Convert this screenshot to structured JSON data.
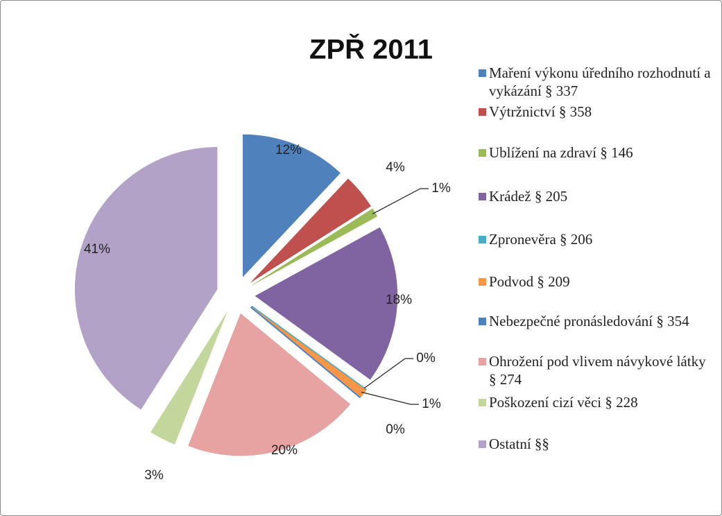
{
  "chart_data": {
    "type": "pie",
    "title": "ZPŘ 2011",
    "categories": [
      "Maření výkonu úředního rozhodnutí a vykázání § 337",
      "Výtržnictví § 358",
      "Ublížení na zdraví § 146",
      "Krádež § 205",
      "Zpronevěra § 206",
      "Podvod § 209",
      "Nebezpečné pronásledování § 354",
      "Ohrožení pod vlivem návykové látky § 274",
      "Poškození cizí věci § 228",
      "Ostatní §§"
    ],
    "values": [
      12,
      4,
      1,
      18,
      0,
      1,
      0,
      20,
      3,
      41
    ],
    "value_labels": [
      "12%",
      "4%",
      "1%",
      "18%",
      "0%",
      "1%",
      "0%",
      "20%",
      "3%",
      "41%"
    ],
    "colors": [
      "#4f81bd",
      "#c0504d",
      "#9bbb59",
      "#8064a2",
      "#4bacc6",
      "#f79646",
      "#4f81bd",
      "#e6a3a2",
      "#c3d69b",
      "#b3a2c7"
    ],
    "legend": "right"
  }
}
